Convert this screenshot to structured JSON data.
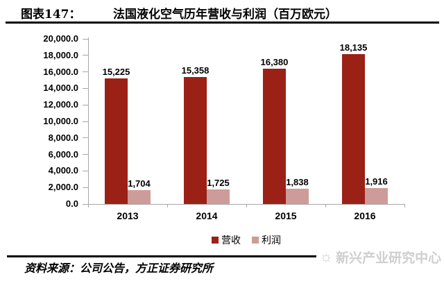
{
  "header": {
    "figure_label": "图表147：",
    "title": "法国液化空气历年营收与利润（百万欧元）"
  },
  "chart_data": {
    "type": "bar",
    "title": "法国液化空气历年营收与利润（百万欧元）",
    "categories": [
      "2013",
      "2014",
      "2015",
      "2016"
    ],
    "series": [
      {
        "key": "revenue",
        "name": "营收",
        "color": "#9B2116",
        "values": [
          15225,
          15358,
          16380,
          18135
        ],
        "labels": [
          "15,225",
          "15,358",
          "16,380",
          "18,135"
        ]
      },
      {
        "key": "profit",
        "name": "利润",
        "color": "#CE9C98",
        "values": [
          1704,
          1725,
          1838,
          1916
        ],
        "labels": [
          "1,704",
          "1,725",
          "1,838",
          "1,916"
        ]
      }
    ],
    "xlabel": "",
    "ylabel": "",
    "ylim": [
      0,
      20000
    ],
    "ytick_step": 2000,
    "ytick_labels": [
      "0.0",
      "2,000.0",
      "4,000.0",
      "6,000.0",
      "8,000.0",
      "10,000.0",
      "12,000.0",
      "14,000.0",
      "16,000.0",
      "18,000.0",
      "20,000.0"
    ],
    "grid": false,
    "legend_position": "bottom"
  },
  "footer": {
    "source": "资料来源：公司公告，方正证券研究所",
    "watermark": "新兴产业研究中心"
  },
  "colors": {
    "revenue_bar": "#9B2116",
    "profit_bar": "#CE9C98",
    "axis": "#A6A6A6",
    "rule": "#000000",
    "watermark": "#CFCFCF",
    "text": "#000000"
  }
}
